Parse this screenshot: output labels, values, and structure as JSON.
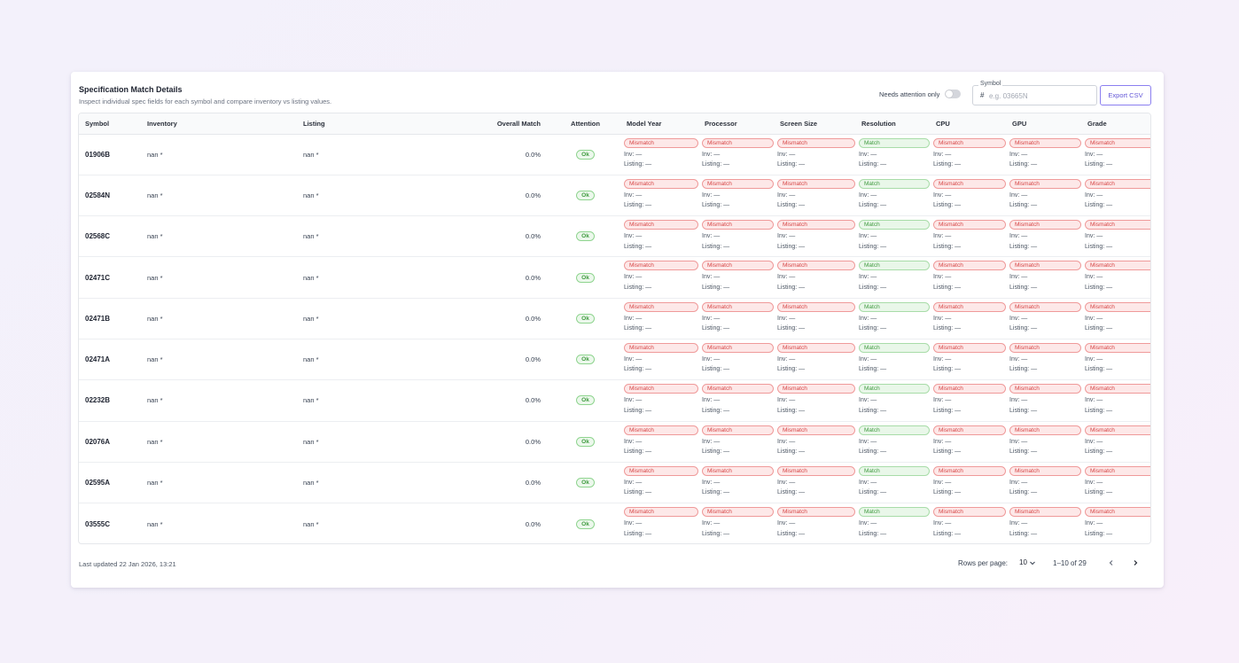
{
  "header": {
    "title": "Specification Match Details",
    "subtitle": "Inspect individual spec fields for each symbol and compare inventory vs listing values."
  },
  "controls": {
    "toggle_label": "Needs attention only",
    "toggle_on": false,
    "symbol_label": "Symbol",
    "symbol_prefix": "#",
    "symbol_placeholder": "e.g. 03665N",
    "symbol_value": "",
    "export_label": "Export CSV"
  },
  "table": {
    "columns": [
      "Symbol",
      "Inventory",
      "Listing",
      "Overall Match",
      "Attention",
      "Model Year",
      "Processor",
      "Screen Size",
      "Resolution",
      "CPU",
      "GPU",
      "Grade"
    ],
    "spec_inv_label": "Inv: —",
    "spec_listing_label": "Listing: —",
    "rows": [
      {
        "symbol": "01906B",
        "inventory": "nan *",
        "listing": "nan *",
        "overall": "0.0%",
        "attention": "Ok",
        "specs": [
          "Mismatch",
          "Mismatch",
          "Mismatch",
          "Match",
          "Mismatch",
          "Mismatch",
          "Mismatch"
        ]
      },
      {
        "symbol": "02584N",
        "inventory": "nan *",
        "listing": "nan *",
        "overall": "0.0%",
        "attention": "Ok",
        "specs": [
          "Mismatch",
          "Mismatch",
          "Mismatch",
          "Match",
          "Mismatch",
          "Mismatch",
          "Mismatch"
        ]
      },
      {
        "symbol": "02568C",
        "inventory": "nan *",
        "listing": "nan *",
        "overall": "0.0%",
        "attention": "Ok",
        "specs": [
          "Mismatch",
          "Mismatch",
          "Mismatch",
          "Match",
          "Mismatch",
          "Mismatch",
          "Mismatch"
        ]
      },
      {
        "symbol": "02471C",
        "inventory": "nan *",
        "listing": "nan *",
        "overall": "0.0%",
        "attention": "Ok",
        "specs": [
          "Mismatch",
          "Mismatch",
          "Mismatch",
          "Match",
          "Mismatch",
          "Mismatch",
          "Mismatch"
        ]
      },
      {
        "symbol": "02471B",
        "inventory": "nan *",
        "listing": "nan *",
        "overall": "0.0%",
        "attention": "Ok",
        "specs": [
          "Mismatch",
          "Mismatch",
          "Mismatch",
          "Match",
          "Mismatch",
          "Mismatch",
          "Mismatch"
        ]
      },
      {
        "symbol": "02471A",
        "inventory": "nan *",
        "listing": "nan *",
        "overall": "0.0%",
        "attention": "Ok",
        "specs": [
          "Mismatch",
          "Mismatch",
          "Mismatch",
          "Match",
          "Mismatch",
          "Mismatch",
          "Mismatch"
        ]
      },
      {
        "symbol": "02232B",
        "inventory": "nan *",
        "listing": "nan *",
        "overall": "0.0%",
        "attention": "Ok",
        "specs": [
          "Mismatch",
          "Mismatch",
          "Mismatch",
          "Match",
          "Mismatch",
          "Mismatch",
          "Mismatch"
        ]
      },
      {
        "symbol": "02076A",
        "inventory": "nan *",
        "listing": "nan *",
        "overall": "0.0%",
        "attention": "Ok",
        "specs": [
          "Mismatch",
          "Mismatch",
          "Mismatch",
          "Match",
          "Mismatch",
          "Mismatch",
          "Mismatch"
        ]
      },
      {
        "symbol": "02595A",
        "inventory": "nan *",
        "listing": "nan *",
        "overall": "0.0%",
        "attention": "Ok",
        "specs": [
          "Mismatch",
          "Mismatch",
          "Mismatch",
          "Match",
          "Mismatch",
          "Mismatch",
          "Mismatch"
        ]
      },
      {
        "symbol": "03555C",
        "inventory": "nan *",
        "listing": "nan *",
        "overall": "0.0%",
        "attention": "Ok",
        "specs": [
          "Mismatch",
          "Mismatch",
          "Mismatch",
          "Match",
          "Mismatch",
          "Mismatch",
          "Mismatch"
        ]
      }
    ]
  },
  "footer": {
    "last_updated": "Last updated 22 Jan 2026, 13:21",
    "rows_per_page_label": "Rows per page:",
    "rows_per_page_value": "10",
    "range": "1–10 of 29",
    "prev_icon": "chevron-left-icon",
    "next_icon": "chevron-right-icon"
  },
  "colors": {
    "accent": "#6458d8",
    "match_green": "#3f9a3f",
    "mismatch_red": "#d64545"
  }
}
